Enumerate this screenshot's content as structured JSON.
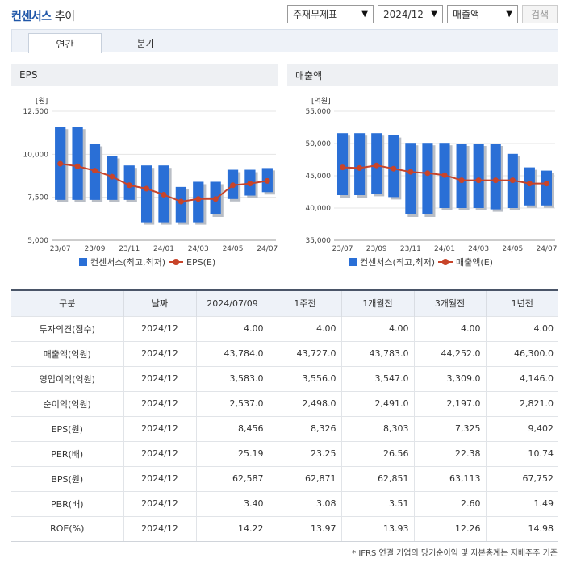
{
  "header": {
    "brand": "컨센서스",
    "title_rest": "추이"
  },
  "controls": {
    "metric": "주재무제표",
    "period": "2024/12",
    "item": "매출액",
    "search_label": "검색"
  },
  "tabs": [
    {
      "label": "연간",
      "active": true
    },
    {
      "label": "분기",
      "active": false
    }
  ],
  "panels": {
    "left_title": "EPS",
    "right_title": "매출액"
  },
  "chart_data": [
    {
      "type": "bar",
      "title": "EPS",
      "ylabel": "[원]",
      "ylim": [
        5000,
        12500
      ],
      "yticks": [
        "12,500",
        "10,000",
        "7,500",
        "5,000"
      ],
      "yticks_values": [
        12500,
        10000,
        7500,
        5000
      ],
      "xticks": [
        "23/07",
        "23/09",
        "23/11",
        "24/01",
        "24/03",
        "24/05",
        "24/07"
      ],
      "legend": [
        "컨센서스(최고,최저)",
        "EPS(E)"
      ],
      "ranges": [
        [
          11600,
          7350
        ],
        [
          11600,
          7350
        ],
        [
          10600,
          7350
        ],
        [
          9900,
          7350
        ],
        [
          9350,
          7350
        ],
        [
          9350,
          6050
        ],
        [
          9350,
          6050
        ],
        [
          8100,
          6050
        ],
        [
          8400,
          6050
        ],
        [
          8400,
          6500
        ],
        [
          9100,
          7400
        ],
        [
          9100,
          7600
        ],
        [
          9200,
          7800
        ]
      ],
      "line": [
        9450,
        9300,
        9050,
        8700,
        8200,
        8000,
        7650,
        7250,
        7400,
        7400,
        8200,
        8300,
        8450
      ]
    },
    {
      "type": "bar",
      "title": "매출액",
      "ylabel": "[억원]",
      "ylim": [
        35000,
        55000
      ],
      "yticks": [
        "55,000",
        "50,000",
        "45,000",
        "40,000",
        "35,000"
      ],
      "yticks_values": [
        55000,
        50000,
        45000,
        40000,
        35000
      ],
      "xticks": [
        "23/07",
        "23/09",
        "23/11",
        "24/01",
        "24/03",
        "24/05",
        "24/07"
      ],
      "legend": [
        "컨센서스(최고,최저)",
        "매출액(E)"
      ],
      "ranges": [
        [
          51600,
          42000
        ],
        [
          51600,
          42000
        ],
        [
          51600,
          42200
        ],
        [
          51300,
          41700
        ],
        [
          50100,
          39000
        ],
        [
          50100,
          39000
        ],
        [
          50100,
          40000
        ],
        [
          50000,
          40000
        ],
        [
          50000,
          40000
        ],
        [
          50000,
          39800
        ],
        [
          48400,
          40000
        ],
        [
          46300,
          40400
        ],
        [
          45800,
          40400
        ]
      ],
      "line": [
        46300,
        46200,
        46600,
        46100,
        45600,
        45400,
        45100,
        44300,
        44300,
        44300,
        44300,
        43800,
        43800
      ]
    }
  ],
  "table": {
    "headers": [
      "구분",
      "날짜",
      "2024/07/09",
      "1주전",
      "1개월전",
      "3개월전",
      "1년전"
    ],
    "rows": [
      [
        "투자의견(점수)",
        "2024/12",
        "4.00",
        "4.00",
        "4.00",
        "4.00",
        "4.00"
      ],
      [
        "매출액(억원)",
        "2024/12",
        "43,784.0",
        "43,727.0",
        "43,783.0",
        "44,252.0",
        "46,300.0"
      ],
      [
        "영업이익(억원)",
        "2024/12",
        "3,583.0",
        "3,556.0",
        "3,547.0",
        "3,309.0",
        "4,146.0"
      ],
      [
        "순이익(억원)",
        "2024/12",
        "2,537.0",
        "2,498.0",
        "2,491.0",
        "2,197.0",
        "2,821.0"
      ],
      [
        "EPS(원)",
        "2024/12",
        "8,456",
        "8,326",
        "8,303",
        "7,325",
        "9,402"
      ],
      [
        "PER(배)",
        "2024/12",
        "25.19",
        "23.25",
        "26.56",
        "22.38",
        "10.74"
      ],
      [
        "BPS(원)",
        "2024/12",
        "62,587",
        "62,871",
        "62,851",
        "63,113",
        "67,752"
      ],
      [
        "PBR(배)",
        "2024/12",
        "3.40",
        "3.08",
        "3.51",
        "2.60",
        "1.49"
      ],
      [
        "ROE(%)",
        "2024/12",
        "14.22",
        "13.97",
        "13.93",
        "12.26",
        "14.98"
      ]
    ]
  },
  "footnote": "* IFRS 연결 기업의 당기순이익 및 자본총계는 지배주주 기준"
}
